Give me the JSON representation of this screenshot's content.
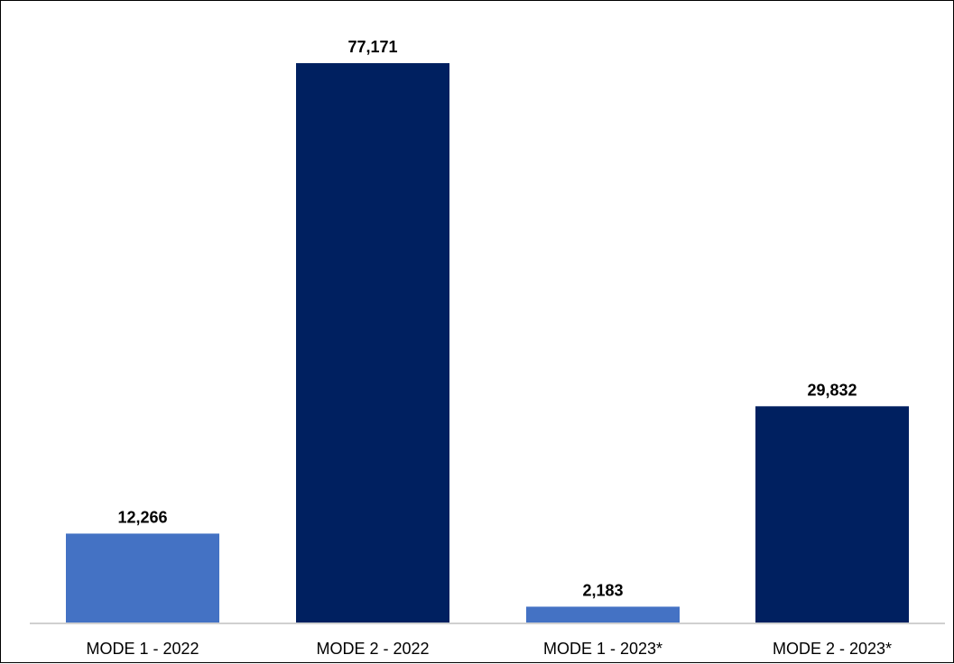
{
  "chart_data": {
    "type": "bar",
    "title": "",
    "xlabel": "",
    "ylabel": "",
    "categories": [
      "MODE 1 - 2022",
      "MODE 2 - 2022",
      "MODE 1 - 2023*",
      "MODE 2 - 2023*"
    ],
    "values": [
      12266,
      77171,
      2183,
      29832
    ],
    "value_labels": [
      "12,266",
      "77,171",
      "2,183",
      "29,832"
    ],
    "bar_colors": [
      "#4472c4",
      "#002060",
      "#4472c4",
      "#002060"
    ],
    "ylim": [
      0,
      80000
    ],
    "grid": false,
    "legend": "none"
  }
}
